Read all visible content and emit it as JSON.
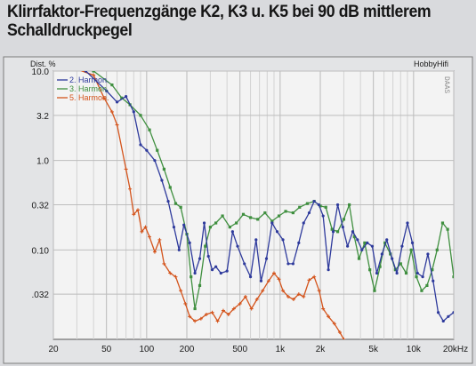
{
  "headline": {
    "line1": "Klirrfaktor-Frequenzgänge K2, K3 u. K5 bei 90 dB mittlerem",
    "line2": "Schalldruckpegel"
  },
  "chart_data": {
    "type": "line",
    "title": "",
    "ylabel": "Dist. %",
    "xlabel": "",
    "brand": "HobbyHifi",
    "side_label": "DAAS",
    "xscale": "log",
    "yscale": "log",
    "xlim": [
      20,
      20000
    ],
    "ylim": [
      0.01,
      10
    ],
    "grid": true,
    "legend_position": "top-left",
    "x_ticks": [
      {
        "value": 20,
        "label": "20"
      },
      {
        "value": 50,
        "label": "50"
      },
      {
        "value": 100,
        "label": "100"
      },
      {
        "value": 200,
        "label": "200"
      },
      {
        "value": 500,
        "label": "500"
      },
      {
        "value": 1000,
        "label": "1k"
      },
      {
        "value": 2000,
        "label": "2k"
      },
      {
        "value": 5000,
        "label": "5k"
      },
      {
        "value": 10000,
        "label": "10k"
      },
      {
        "value": 20000,
        "label": "20kHz"
      }
    ],
    "y_ticks": [
      {
        "value": 10,
        "label": "10.0"
      },
      {
        "value": 3.2,
        "label": "3.2"
      },
      {
        "value": 1.0,
        "label": "1.0"
      },
      {
        "value": 0.32,
        "label": "0.32"
      },
      {
        "value": 0.1,
        "label": "0.10"
      },
      {
        "value": 0.032,
        "label": ".032"
      }
    ],
    "series": [
      {
        "name": "2. Harmon.",
        "color": "#2e3a9c",
        "marker": "dot",
        "points": [
          [
            20,
            13
          ],
          [
            35,
            10
          ],
          [
            50,
            6
          ],
          [
            60,
            4.5
          ],
          [
            70,
            5.2
          ],
          [
            80,
            3.5
          ],
          [
            90,
            1.5
          ],
          [
            100,
            1.3
          ],
          [
            115,
            1.0
          ],
          [
            130,
            0.6
          ],
          [
            145,
            0.35
          ],
          [
            160,
            0.18
          ],
          [
            175,
            0.1
          ],
          [
            190,
            0.19
          ],
          [
            210,
            0.12
          ],
          [
            230,
            0.055
          ],
          [
            250,
            0.08
          ],
          [
            270,
            0.2
          ],
          [
            290,
            0.085
          ],
          [
            310,
            0.06
          ],
          [
            330,
            0.065
          ],
          [
            360,
            0.055
          ],
          [
            400,
            0.058
          ],
          [
            440,
            0.16
          ],
          [
            480,
            0.11
          ],
          [
            540,
            0.07
          ],
          [
            600,
            0.05
          ],
          [
            660,
            0.13
          ],
          [
            720,
            0.045
          ],
          [
            790,
            0.08
          ],
          [
            870,
            0.2
          ],
          [
            950,
            0.16
          ],
          [
            1050,
            0.13
          ],
          [
            1150,
            0.07
          ],
          [
            1250,
            0.07
          ],
          [
            1380,
            0.12
          ],
          [
            1500,
            0.2
          ],
          [
            1650,
            0.26
          ],
          [
            1800,
            0.35
          ],
          [
            1950,
            0.32
          ],
          [
            2100,
            0.24
          ],
          [
            2300,
            0.06
          ],
          [
            2500,
            0.16
          ],
          [
            2700,
            0.32
          ],
          [
            2950,
            0.18
          ],
          [
            3200,
            0.11
          ],
          [
            3500,
            0.16
          ],
          [
            3800,
            0.13
          ],
          [
            4100,
            0.1
          ],
          [
            4500,
            0.12
          ],
          [
            4900,
            0.11
          ],
          [
            5300,
            0.055
          ],
          [
            5800,
            0.09
          ],
          [
            6300,
            0.13
          ],
          [
            6900,
            0.08
          ],
          [
            7500,
            0.055
          ],
          [
            8200,
            0.11
          ],
          [
            9000,
            0.2
          ],
          [
            9800,
            0.12
          ],
          [
            10700,
            0.055
          ],
          [
            11700,
            0.05
          ],
          [
            12800,
            0.09
          ],
          [
            14000,
            0.045
          ],
          [
            15300,
            0.02
          ],
          [
            16700,
            0.016
          ],
          [
            18200,
            0.018
          ],
          [
            20000,
            0.02
          ]
        ]
      },
      {
        "name": "3. Harmon.",
        "color": "#3f8f3f",
        "marker": "square",
        "points": [
          [
            20,
            13
          ],
          [
            40,
            10
          ],
          [
            55,
            7
          ],
          [
            65,
            5
          ],
          [
            75,
            4.2
          ],
          [
            90,
            3.2
          ],
          [
            105,
            2.2
          ],
          [
            120,
            1.3
          ],
          [
            135,
            0.8
          ],
          [
            150,
            0.5
          ],
          [
            165,
            0.33
          ],
          [
            180,
            0.3
          ],
          [
            200,
            0.15
          ],
          [
            215,
            0.05
          ],
          [
            230,
            0.022
          ],
          [
            250,
            0.04
          ],
          [
            275,
            0.11
          ],
          [
            300,
            0.18
          ],
          [
            330,
            0.2
          ],
          [
            370,
            0.24
          ],
          [
            420,
            0.18
          ],
          [
            470,
            0.2
          ],
          [
            530,
            0.25
          ],
          [
            600,
            0.23
          ],
          [
            680,
            0.22
          ],
          [
            770,
            0.26
          ],
          [
            870,
            0.21
          ],
          [
            980,
            0.24
          ],
          [
            1100,
            0.27
          ],
          [
            1250,
            0.26
          ],
          [
            1400,
            0.3
          ],
          [
            1600,
            0.33
          ],
          [
            1800,
            0.35
          ],
          [
            2000,
            0.31
          ],
          [
            2200,
            0.3
          ],
          [
            2450,
            0.17
          ],
          [
            2700,
            0.16
          ],
          [
            3000,
            0.22
          ],
          [
            3300,
            0.32
          ],
          [
            3600,
            0.14
          ],
          [
            3900,
            0.08
          ],
          [
            4300,
            0.12
          ],
          [
            4700,
            0.06
          ],
          [
            5100,
            0.035
          ],
          [
            5600,
            0.065
          ],
          [
            6100,
            0.12
          ],
          [
            6700,
            0.09
          ],
          [
            7300,
            0.06
          ],
          [
            8000,
            0.07
          ],
          [
            8800,
            0.055
          ],
          [
            9600,
            0.1
          ],
          [
            10500,
            0.05
          ],
          [
            11500,
            0.035
          ],
          [
            12600,
            0.04
          ],
          [
            13800,
            0.06
          ],
          [
            15000,
            0.1
          ],
          [
            16500,
            0.2
          ],
          [
            18000,
            0.17
          ],
          [
            20000,
            0.05
          ]
        ]
      },
      {
        "name": "5. Harmon.",
        "color": "#d4541c",
        "marker": "plus",
        "points": [
          [
            20,
            13
          ],
          [
            40,
            9
          ],
          [
            48,
            5
          ],
          [
            55,
            3.5
          ],
          [
            60,
            2.5
          ],
          [
            70,
            0.8
          ],
          [
            75,
            0.48
          ],
          [
            80,
            0.25
          ],
          [
            86,
            0.28
          ],
          [
            92,
            0.16
          ],
          [
            98,
            0.18
          ],
          [
            105,
            0.14
          ],
          [
            115,
            0.095
          ],
          [
            125,
            0.13
          ],
          [
            135,
            0.07
          ],
          [
            150,
            0.055
          ],
          [
            165,
            0.05
          ],
          [
            180,
            0.035
          ],
          [
            195,
            0.025
          ],
          [
            210,
            0.018
          ],
          [
            230,
            0.016
          ],
          [
            255,
            0.017
          ],
          [
            280,
            0.019
          ],
          [
            310,
            0.02
          ],
          [
            340,
            0.016
          ],
          [
            375,
            0.021
          ],
          [
            410,
            0.019
          ],
          [
            450,
            0.022
          ],
          [
            500,
            0.025
          ],
          [
            550,
            0.03
          ],
          [
            610,
            0.022
          ],
          [
            670,
            0.028
          ],
          [
            740,
            0.035
          ],
          [
            820,
            0.045
          ],
          [
            900,
            0.055
          ],
          [
            980,
            0.047
          ],
          [
            1050,
            0.035
          ],
          [
            1150,
            0.03
          ],
          [
            1260,
            0.028
          ],
          [
            1380,
            0.032
          ],
          [
            1500,
            0.03
          ],
          [
            1650,
            0.046
          ],
          [
            1800,
            0.05
          ],
          [
            1960,
            0.035
          ],
          [
            2100,
            0.022
          ],
          [
            2300,
            0.018
          ],
          [
            2550,
            0.015
          ],
          [
            2800,
            0.012
          ],
          [
            3000,
            0.01
          ]
        ]
      }
    ]
  }
}
